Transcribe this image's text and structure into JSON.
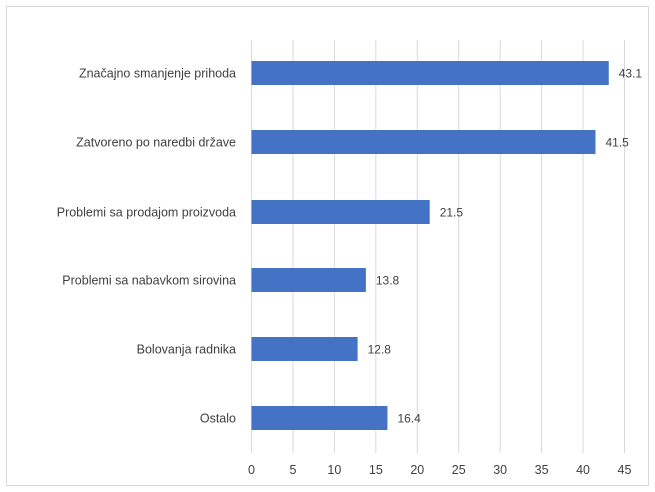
{
  "chart_data": {
    "type": "bar",
    "orientation": "horizontal",
    "title": "",
    "xlabel": "",
    "ylabel": "",
    "categories": [
      "Značajno smanjenje prihoda",
      "Zatvoreno po naredbi države",
      "Problemi sa prodajom proizvoda",
      "Problemi sa nabavkom sirovina",
      "Bolovanja radnika",
      "Ostalo"
    ],
    "values": [
      43.1,
      41.5,
      21.5,
      13.8,
      12.8,
      16.4
    ],
    "value_labels": [
      "43.1",
      "41.5",
      "21.5",
      "13.8",
      "12.8",
      "16.4"
    ],
    "xlim": [
      0,
      45
    ],
    "x_ticks": [
      "0",
      "5",
      "10",
      "15",
      "20",
      "25",
      "30",
      "35",
      "40",
      "45"
    ],
    "grid": true,
    "legend": "none",
    "bar_color": "#4472C4",
    "grid_color": "#d9d9d9"
  }
}
